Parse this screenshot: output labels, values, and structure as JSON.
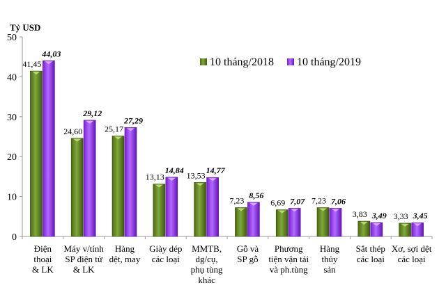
{
  "chart_data": {
    "type": "bar",
    "ylabel": "Tỷ USD",
    "ylim": [
      0,
      50
    ],
    "yticks": [
      0,
      10,
      20,
      30,
      40,
      50
    ],
    "grid": false,
    "legend_position": "top-right",
    "categories": [
      [
        "Điện",
        "thoại",
        "& LK"
      ],
      [
        "Máy v/tính",
        "SP điện tử",
        "& LK"
      ],
      [
        "Hàng",
        "dệt, may"
      ],
      [
        "Giày dép",
        "các loại"
      ],
      [
        "MMTB,",
        "dg/cụ,",
        "phụ tùng",
        "khác"
      ],
      [
        "Gỗ và",
        "SP gỗ"
      ],
      [
        "Phương",
        "tiện vận tải",
        "và ph.tùng"
      ],
      [
        "Hàng",
        "thủy",
        "sản"
      ],
      [
        "Sắt thép",
        "các loại"
      ],
      [
        "Xơ, sợi dệt",
        "các loại"
      ]
    ],
    "series": [
      {
        "name": "10 tháng/2018",
        "color": "#6b8e23",
        "values": [
          41.45,
          24.6,
          25.17,
          13.13,
          13.53,
          7.23,
          6.69,
          7.23,
          3.83,
          3.33
        ],
        "labels": [
          "41,45",
          "24,60",
          "25,17",
          "13,13",
          "13,53",
          "7,23",
          "6,69",
          "7,23",
          "3,83",
          "3,33"
        ]
      },
      {
        "name": "10 tháng/2019",
        "color": "#9b30ff",
        "values": [
          44.03,
          29.12,
          27.29,
          14.84,
          14.77,
          8.56,
          7.07,
          7.06,
          3.49,
          3.45
        ],
        "labels": [
          "44,03",
          "29,12",
          "27,29",
          "14,84",
          "14,77",
          "8,56",
          "7,07",
          "7,06",
          "3,49",
          "3,45"
        ]
      }
    ]
  }
}
